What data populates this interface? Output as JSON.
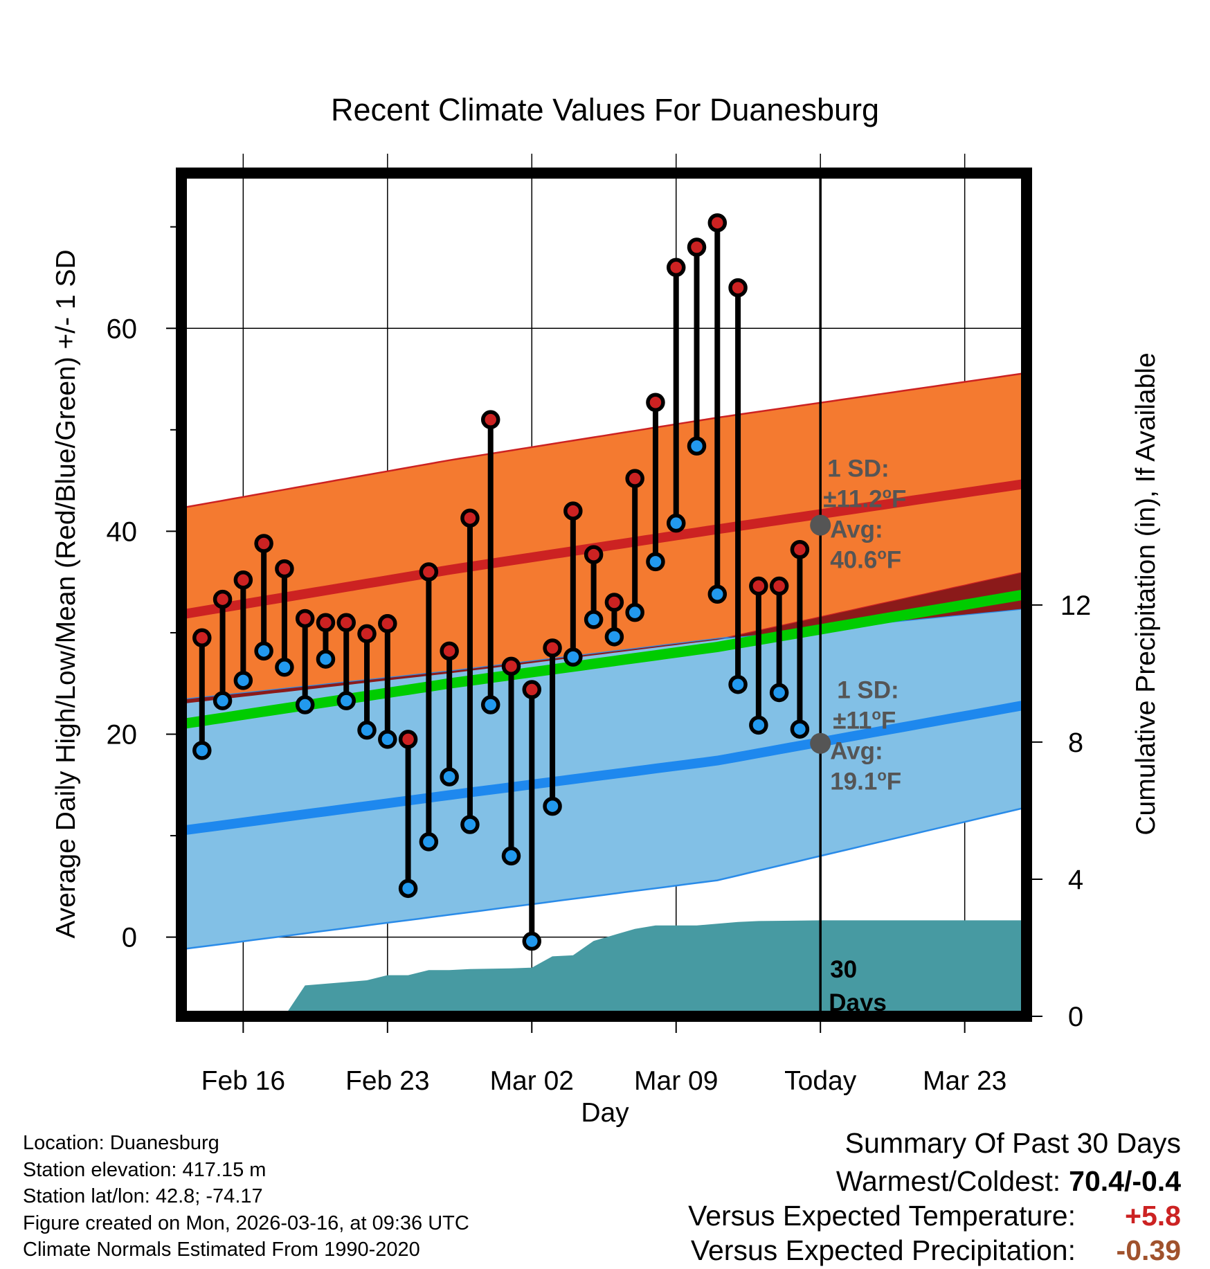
{
  "colors": {
    "high_dot": "#cc2222",
    "low_dot": "#2299ee",
    "orange_band": "#f47a30",
    "orange_band_edge": "#cc2222",
    "mean_high_line": "#cc2222",
    "blue_band": "#82c0e6",
    "blue_band_edge": "#2a8be8",
    "mean_low_line": "#1e88ee",
    "mean_line": "#00cc00",
    "precip_fill": "#479aa2",
    "precip_text": "#a0522d",
    "temp_text": "#cc2222",
    "annotation_text": "#555555",
    "avg_marker": "#555555"
  },
  "chart_data": {
    "type": "range",
    "title": "Recent Climate Values For Duanesburg",
    "xlabel": "Day",
    "ylabel": "Average Daily High/Low/Mean (Red/Blue/Green) +/- 1 SD",
    "y2label": "Cumulative Precipitation (in), If Available",
    "x_range": [
      -2.0,
      39.0
    ],
    "ylim": [
      -7.8,
      75.3
    ],
    "y_ticks": [
      0,
      20,
      40,
      60
    ],
    "y_minor_ticks": [
      -10,
      10,
      30,
      50,
      70
    ],
    "y2lim": [
      0,
      24.6
    ],
    "y2_ticks": [
      0,
      4,
      8,
      12
    ],
    "x_ticks": [
      {
        "x": 1,
        "label": "Feb 16"
      },
      {
        "x": 8,
        "label": "Feb 23"
      },
      {
        "x": 15,
        "label": "Mar 02"
      },
      {
        "x": 22,
        "label": "Mar 09"
      },
      {
        "x": 29,
        "label": "Today"
      },
      {
        "x": 36,
        "label": "Mar 23"
      }
    ],
    "today_x": 29,
    "today_label_line1": "30",
    "today_label_line2": "Days",
    "days": [
      -1,
      0,
      1,
      2,
      3,
      4,
      5,
      6,
      7,
      8,
      9,
      10,
      11,
      12,
      13,
      14,
      15,
      16,
      17,
      18,
      19,
      20,
      21,
      22,
      23,
      24,
      25,
      26,
      27,
      28
    ],
    "highs": [
      29.5,
      33.3,
      35.2,
      38.8,
      36.3,
      31.4,
      31.0,
      31.0,
      29.9,
      30.9,
      19.5,
      36.0,
      28.2,
      41.3,
      51.0,
      26.7,
      24.4,
      28.5,
      42.0,
      37.7,
      33.0,
      45.2,
      52.7,
      66.0,
      68.0,
      70.4,
      64.0,
      34.6,
      34.6,
      38.2
    ],
    "lows": [
      18.4,
      23.3,
      25.3,
      28.2,
      26.6,
      22.9,
      27.4,
      23.3,
      20.4,
      19.5,
      4.8,
      9.4,
      15.8,
      11.1,
      22.9,
      8.0,
      -0.4,
      12.9,
      27.6,
      31.3,
      29.6,
      32.0,
      37.0,
      40.8,
      48.4,
      33.8,
      24.9,
      20.9,
      24.1,
      20.5
    ],
    "normals_x": [
      -2,
      11,
      24,
      39
    ],
    "normal_high": [
      31.8,
      36.2,
      40.2,
      44.7
    ],
    "normal_high_upper": [
      42.3,
      47.0,
      51.2,
      55.6
    ],
    "normal_high_lower": [
      23.0,
      26.0,
      29.3,
      36.0
    ],
    "normal_mean": [
      21.0,
      25.0,
      28.6,
      33.8
    ],
    "normal_low": [
      10.5,
      14.0,
      17.4,
      22.9
    ],
    "normal_low_upper": [
      23.4,
      26.2,
      29.4,
      32.4
    ],
    "normal_low_lower": [
      -1.2,
      2.2,
      5.6,
      12.8
    ],
    "precip_x": [
      3,
      4,
      6,
      7,
      8,
      9,
      10,
      11,
      12,
      14,
      15,
      16,
      17,
      18,
      20,
      21,
      22,
      23,
      24,
      25,
      26,
      29,
      39
    ],
    "precip_cum": [
      0,
      0.9,
      1.0,
      1.05,
      1.2,
      1.2,
      1.35,
      1.35,
      1.38,
      1.4,
      1.42,
      1.75,
      1.78,
      2.2,
      2.55,
      2.65,
      2.65,
      2.65,
      2.7,
      2.75,
      2.78,
      2.8,
      2.8
    ],
    "high_annotation": {
      "sd_label": "1 SD:",
      "sd_value": "±11.2",
      "avg_label": "Avg:",
      "avg_value": "40.6",
      "unit": "F",
      "avg": 40.6
    },
    "low_annotation": {
      "sd_label": "1 SD:",
      "sd_value": "±11",
      "avg_label": "Avg:",
      "avg_value": "19.1",
      "unit": "F",
      "avg": 19.1
    },
    "degree_symbol": "o"
  },
  "footer": {
    "location": "Location: Duanesburg",
    "elevation": "Station elevation: 417.15 m",
    "latlon": "Station lat/lon: 42.8; -74.17",
    "created": "Figure created on Mon, 2026-03-16, at 09:36 UTC",
    "normals": "Climate Normals Estimated From 1990-2020"
  },
  "summary": {
    "title": "Summary Of Past 30 Days",
    "warmest_coldest_label": "Warmest/Coldest:",
    "warmest_coldest_value": "70.4/-0.4",
    "temp_label": "Versus Expected Temperature:",
    "temp_value": "+5.8",
    "precip_label": "Versus Expected Precipitation:",
    "precip_value": "-0.39"
  }
}
